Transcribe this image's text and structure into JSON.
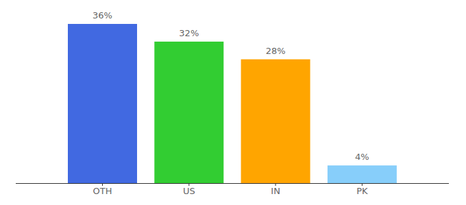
{
  "chart_data": {
    "type": "bar",
    "categories": [
      "OTH",
      "US",
      "IN",
      "PK"
    ],
    "values": [
      36,
      32,
      28,
      4
    ],
    "value_labels": [
      "36%",
      "32%",
      "28%",
      "4%"
    ],
    "colors": [
      "#4169e1",
      "#32cd32",
      "#ffa500",
      "#87cefa"
    ],
    "ylim": [
      0,
      36
    ],
    "data_labels": true,
    "tick_labels": "x",
    "grid": false
  }
}
